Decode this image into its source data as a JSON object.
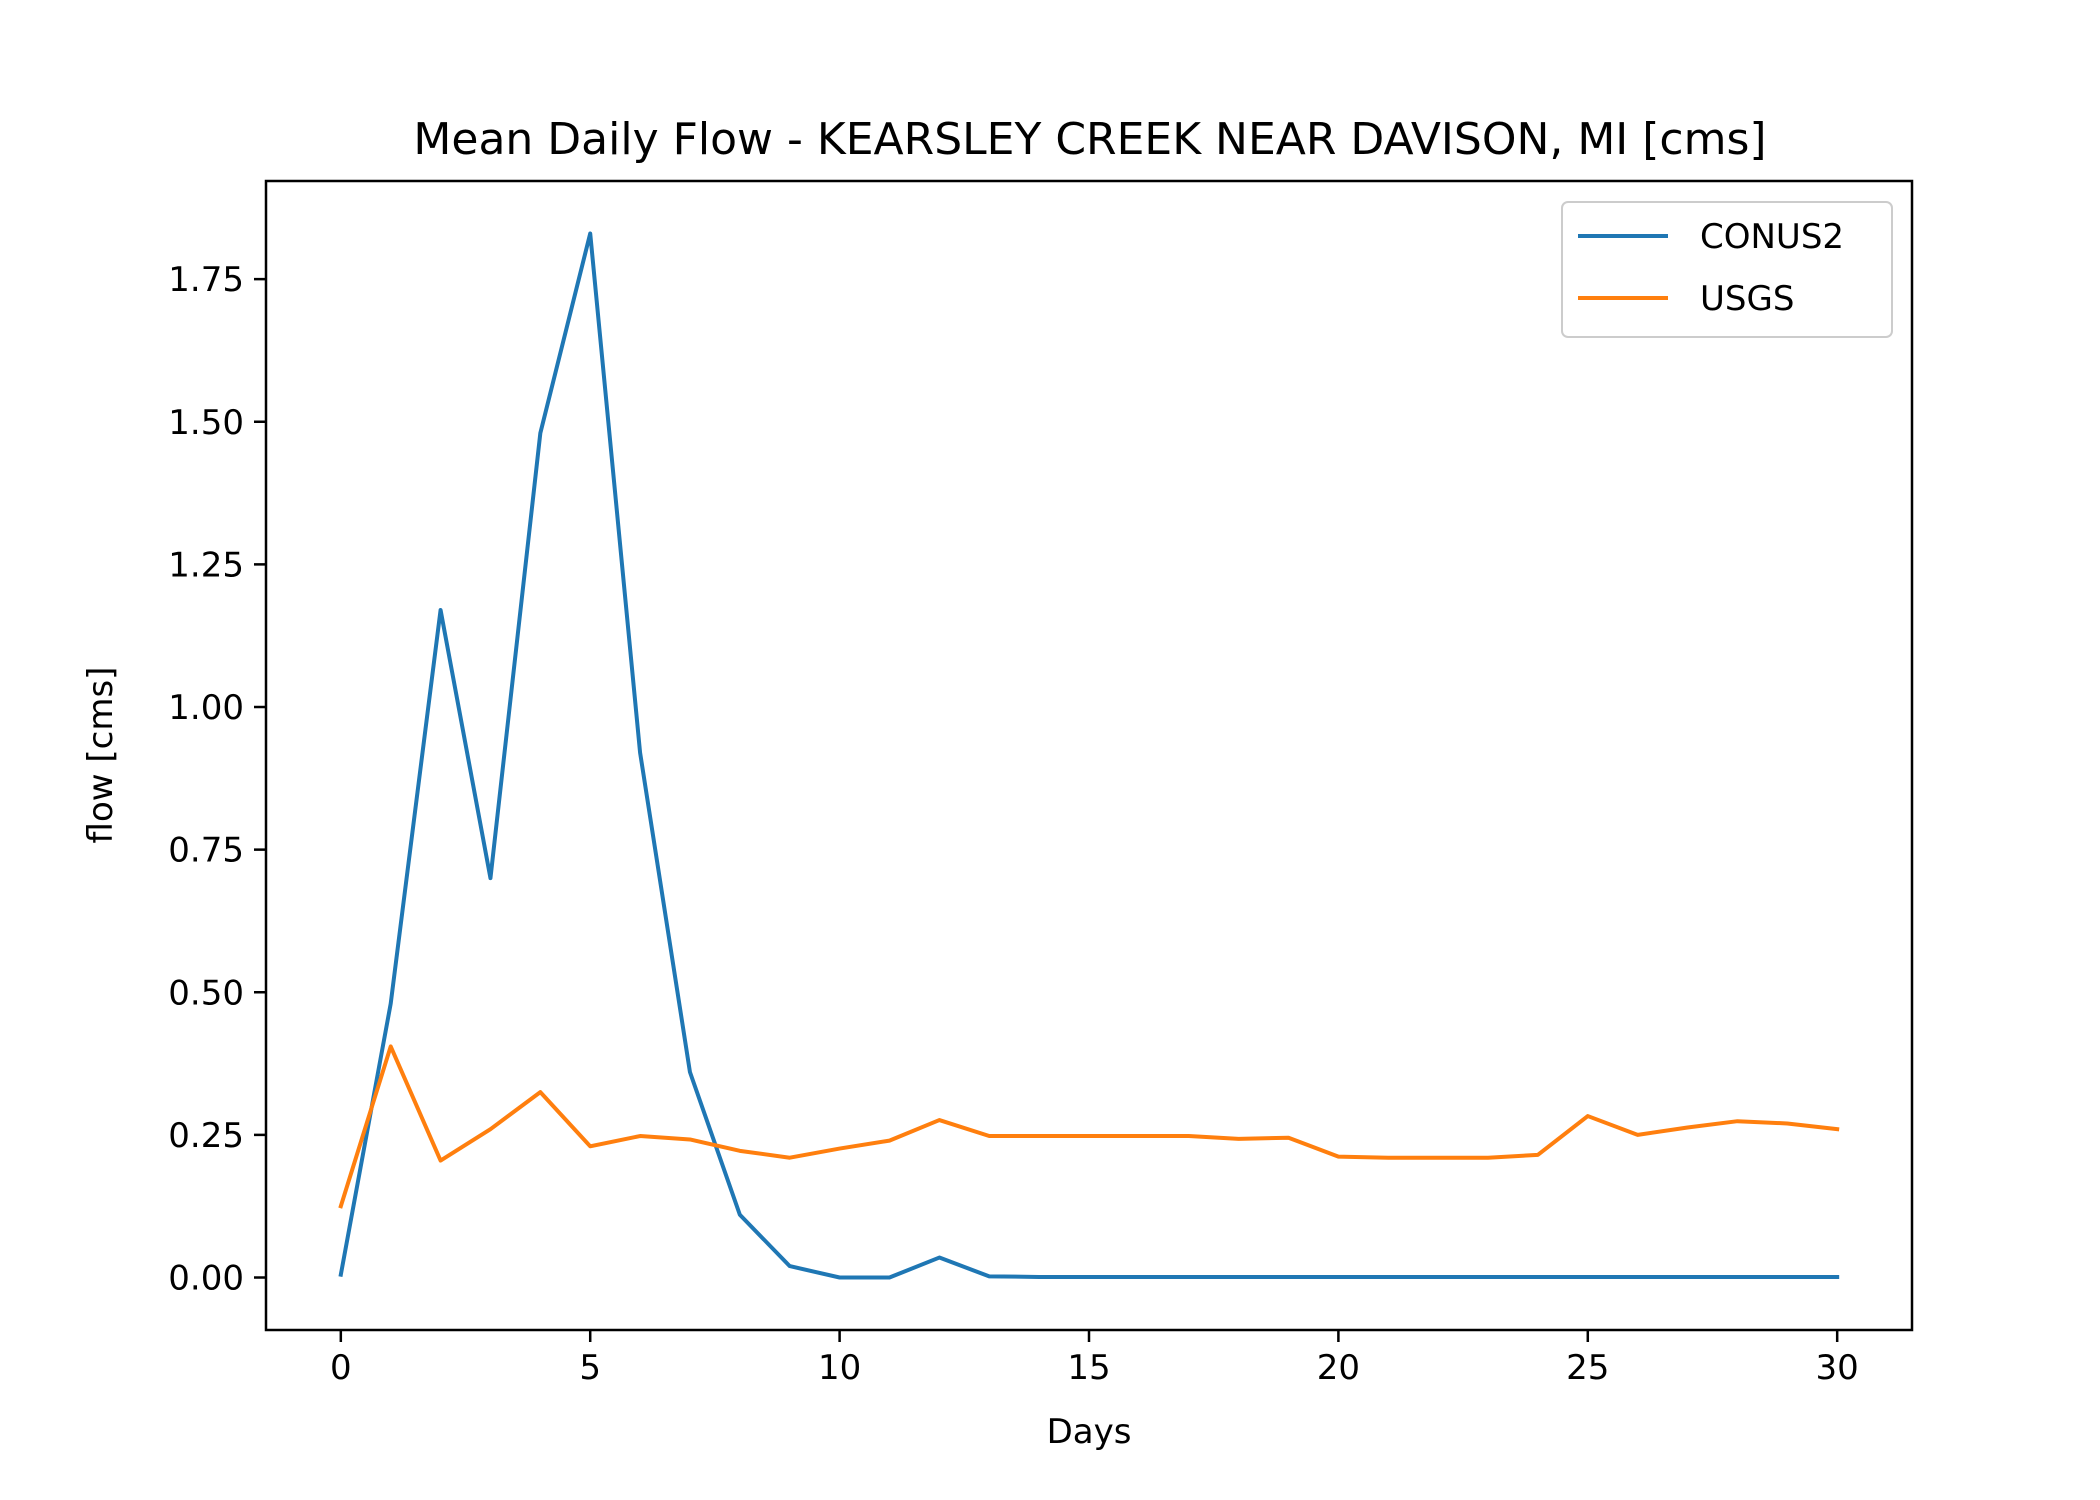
{
  "chart_data": {
    "type": "line",
    "title": "Mean Daily Flow - KEARSLEY CREEK NEAR DAVISON, MI [cms]",
    "xlabel": "Days",
    "ylabel": "flow [cms]",
    "xlim": [
      -1.5,
      31.5
    ],
    "ylim": [
      -0.092,
      1.922
    ],
    "xticks": [
      0,
      5,
      10,
      15,
      20,
      25,
      30
    ],
    "xtick_labels": [
      "0",
      "5",
      "10",
      "15",
      "20",
      "25",
      "30"
    ],
    "yticks": [
      0,
      0.25,
      0.5,
      0.75,
      1.0,
      1.25,
      1.5,
      1.75
    ],
    "ytick_labels": [
      "0.00",
      "0.25",
      "0.50",
      "0.75",
      "1.00",
      "1.25",
      "1.50",
      "1.75"
    ],
    "grid": false,
    "legend_position": "top-right",
    "x": [
      0,
      1,
      2,
      3,
      4,
      5,
      6,
      7,
      8,
      9,
      10,
      11,
      12,
      13,
      14,
      15,
      16,
      17,
      18,
      19,
      20,
      21,
      22,
      23,
      24,
      25,
      26,
      27,
      28,
      29,
      30
    ],
    "series": [
      {
        "name": "CONUS2",
        "color": "#1f77b4",
        "values": [
          0.005,
          0.48,
          1.17,
          0.7,
          1.48,
          1.83,
          0.92,
          0.36,
          0.11,
          0.02,
          0.0,
          0.0,
          0.035,
          0.002,
          0.001,
          0.001,
          0.001,
          0.001,
          0.001,
          0.001,
          0.001,
          0.001,
          0.001,
          0.001,
          0.001,
          0.001,
          0.001,
          0.001,
          0.001,
          0.001,
          0.001
        ]
      },
      {
        "name": "USGS",
        "color": "#ff7f0e",
        "values": [
          0.125,
          0.405,
          0.205,
          0.26,
          0.325,
          0.23,
          0.248,
          0.242,
          0.222,
          0.21,
          0.226,
          0.24,
          0.276,
          0.248,
          0.248,
          0.248,
          0.248,
          0.248,
          0.243,
          0.245,
          0.212,
          0.21,
          0.21,
          0.21,
          0.215,
          0.283,
          0.25,
          0.263,
          0.274,
          0.27,
          0.26
        ]
      }
    ]
  }
}
